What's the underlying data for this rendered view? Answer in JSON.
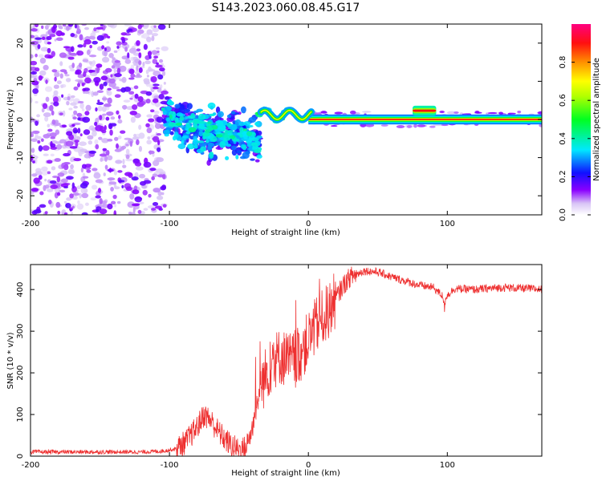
{
  "title": "S143.2023.060.08.45.G17",
  "chart_data": [
    {
      "type": "heatmap",
      "xlabel": "Height of straight line (km)",
      "ylabel": "Frequency (Hz)",
      "xlim": [
        -200,
        168
      ],
      "ylim": [
        -25,
        25
      ],
      "xticks": [
        -200,
        -100,
        0,
        100
      ],
      "yticks": [
        -20,
        -10,
        0,
        10,
        20
      ],
      "colorbar": {
        "label": "Normalized spectral amplitude",
        "range": [
          0,
          1
        ],
        "ticks": [
          0.0,
          0.2,
          0.4,
          0.6,
          0.8
        ],
        "colors": [
          "#ffffff",
          "#e0d0f8",
          "#8000ff",
          "#0000ff",
          "#00ffff",
          "#00ff00",
          "#ffff00",
          "#ff8000",
          "#ff0000",
          "#ff0080"
        ]
      },
      "regions": [
        {
          "x": [
            -200,
            -103
          ],
          "freq_spread_hz": 25,
          "amplitude": "low (noise, 0.0-0.2)"
        },
        {
          "x": [
            -103,
            -35
          ],
          "freq_spread_hz": 14,
          "amplitude": "0.2-0.5, scattered"
        },
        {
          "x": [
            -35,
            0
          ],
          "freq_center_hz": 1,
          "amplitude": "0.4-0.7"
        },
        {
          "x": [
            0,
            168
          ],
          "freq_center_hz": 0,
          "amplitude": "0.8-1.0 narrow line"
        }
      ]
    },
    {
      "type": "line",
      "xlabel": "Height of straight line (km)",
      "ylabel": "SNR (10 * v/v)",
      "xlim": [
        -200,
        168
      ],
      "ylim": [
        0,
        460
      ],
      "xticks": [
        -200,
        -100,
        0,
        100
      ],
      "yticks": [
        0,
        100,
        200,
        300,
        400
      ],
      "color": "#ee3030",
      "x": [
        -200,
        -180,
        -160,
        -140,
        -120,
        -105,
        -95,
        -88,
        -80,
        -75,
        -70,
        -65,
        -60,
        -55,
        -50,
        -45,
        -40,
        -35,
        -30,
        -25,
        -20,
        -15,
        -10,
        -5,
        0,
        5,
        10,
        15,
        20,
        25,
        30,
        40,
        50,
        60,
        70,
        80,
        90,
        98,
        105,
        120,
        140,
        160,
        168
      ],
      "y": [
        10,
        10,
        10,
        10,
        10,
        12,
        18,
        35,
        70,
        100,
        85,
        60,
        40,
        25,
        15,
        20,
        70,
        160,
        200,
        230,
        240,
        230,
        230,
        250,
        280,
        310,
        330,
        350,
        380,
        410,
        430,
        445,
        442,
        430,
        420,
        410,
        405,
        380,
        402,
        400,
        405,
        402,
        400
      ]
    }
  ]
}
